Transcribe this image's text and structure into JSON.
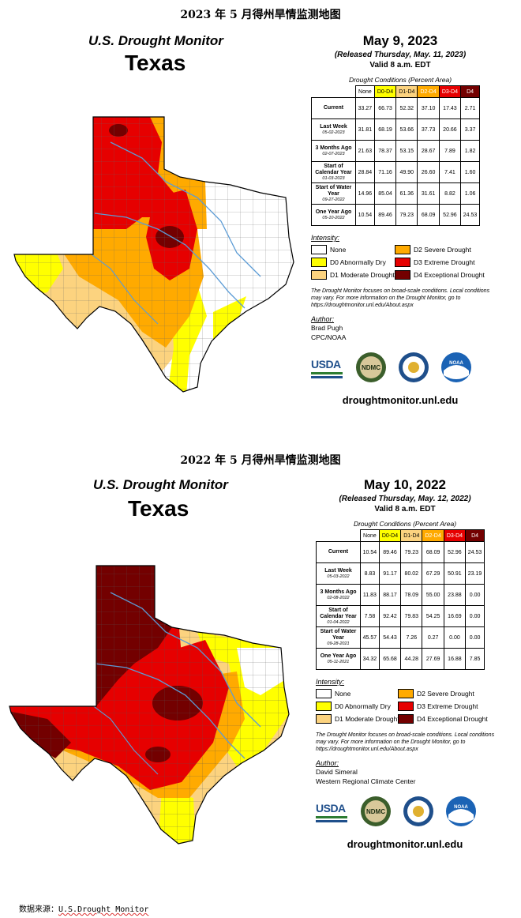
{
  "panels": [
    {
      "section_title": "2023 年 5 月得州旱情监测地图",
      "monitor_label": "U.S. Drought Monitor",
      "state": "Texas",
      "date": "May 9, 2023",
      "released": "(Released Thursday, May. 11, 2023)",
      "valid": "Valid 8 a.m. EDT",
      "table_caption": "Drought Conditions (Percent Area)",
      "columns": [
        "None",
        "D0-D4",
        "D1-D4",
        "D2-D4",
        "D3-D4",
        "D4"
      ],
      "rows": [
        {
          "label": "Current",
          "sub": "",
          "values": [
            "33.27",
            "66.73",
            "52.32",
            "37.10",
            "17.43",
            "2.71"
          ]
        },
        {
          "label": "Last Week",
          "sub": "05-02-2023",
          "values": [
            "31.81",
            "68.19",
            "53.66",
            "37.73",
            "20.66",
            "3.37"
          ]
        },
        {
          "label": "3 Months Ago",
          "sub": "02-07-2023",
          "values": [
            "21.63",
            "78.37",
            "53.15",
            "28.67",
            "7.89",
            "1.82"
          ]
        },
        {
          "label": "Start of Calendar Year",
          "sub": "01-03-2023",
          "values": [
            "28.84",
            "71.16",
            "49.90",
            "26.60",
            "7.41",
            "1.60"
          ]
        },
        {
          "label": "Start of Water Year",
          "sub": "09-27-2022",
          "values": [
            "14.96",
            "85.04",
            "61.36",
            "31.61",
            "8.82",
            "1.06"
          ]
        },
        {
          "label": "One Year Ago",
          "sub": "05-10-2022",
          "values": [
            "10.54",
            "89.46",
            "79.23",
            "68.09",
            "52.96",
            "24.53"
          ]
        }
      ],
      "intensity_title": "Intensity:",
      "legend": [
        "None",
        "D0 Abnormally Dry",
        "D1 Moderate Drought",
        "D2 Severe Drought",
        "D3 Extreme Drought",
        "D4 Exceptional Drought"
      ],
      "note": "The Drought Monitor focuses on broad-scale conditions. Local conditions may vary. For more information on the Drought Monitor, go to https://droughtmonitor.unl.edu/About.aspx",
      "author_title": "Author:",
      "author_name": "Brad Pugh",
      "author_org": "CPC/NOAA",
      "logo_usda": "USDA",
      "logo_ndmc": "NDMC",
      "logo_noaa": "NOAA",
      "site": "droughtmonitor.unl.edu"
    },
    {
      "section_title": "2022 年 5 月得州旱情监测地图",
      "monitor_label": "U.S. Drought Monitor",
      "state": "Texas",
      "date": "May 10, 2022",
      "released": "(Released Thursday, May. 12, 2022)",
      "valid": "Valid 8 a.m. EDT",
      "table_caption": "Drought Conditions (Percent Area)",
      "columns": [
        "None",
        "D0-D4",
        "D1-D4",
        "D2-D4",
        "D3-D4",
        "D4"
      ],
      "rows": [
        {
          "label": "Current",
          "sub": "",
          "values": [
            "10.54",
            "89.46",
            "79.23",
            "68.09",
            "52.96",
            "24.53"
          ]
        },
        {
          "label": "Last Week",
          "sub": "05-03-2022",
          "values": [
            "8.83",
            "91.17",
            "80.02",
            "67.29",
            "50.91",
            "23.19"
          ]
        },
        {
          "label": "3 Months Ago",
          "sub": "02-08-2022",
          "values": [
            "11.83",
            "88.17",
            "78.09",
            "55.00",
            "23.88",
            "0.00"
          ]
        },
        {
          "label": "Start of Calendar Year",
          "sub": "01-04-2022",
          "values": [
            "7.58",
            "92.42",
            "79.83",
            "54.25",
            "16.69",
            "0.00"
          ]
        },
        {
          "label": "Start of Water Year",
          "sub": "09-28-2021",
          "values": [
            "45.57",
            "54.43",
            "7.26",
            "0.27",
            "0.00",
            "0.00"
          ]
        },
        {
          "label": "One Year Ago",
          "sub": "05-11-2021",
          "values": [
            "34.32",
            "65.68",
            "44.28",
            "27.69",
            "16.88",
            "7.85"
          ]
        }
      ],
      "intensity_title": "Intensity:",
      "legend": [
        "None",
        "D0 Abnormally Dry",
        "D1 Moderate Drought",
        "D2 Severe Drought",
        "D3 Extreme Drought",
        "D4 Exceptional Drought"
      ],
      "note": "The Drought Monitor focuses on broad-scale conditions. Local conditions may vary. For more information on the Drought Monitor, go to https://droughtmonitor.unl.edu/About.aspx",
      "author_title": "Author:",
      "author_name": "David Simeral",
      "author_org": "Western Regional Climate Center",
      "logo_usda": "USDA",
      "logo_ndmc": "NDMC",
      "logo_noaa": "NOAA",
      "site": "droughtmonitor.unl.edu"
    }
  ],
  "colors": {
    "none": "#ffffff",
    "d0": "#ffff00",
    "d1": "#fcd37f",
    "d2": "#ffaa00",
    "d3": "#e60000",
    "d4": "#730000",
    "rivers": "#5b9bd5"
  },
  "source_prefix": "数据来源：",
  "source_link": "U.S.Drought Monitor"
}
